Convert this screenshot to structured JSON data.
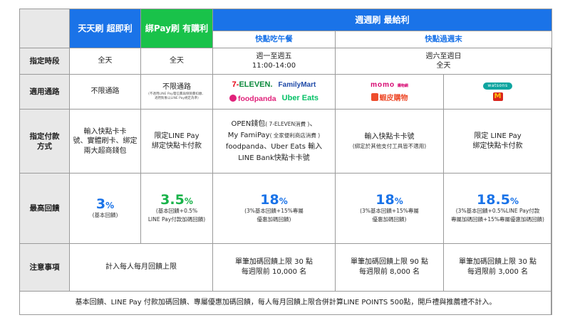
{
  "header": {
    "col1": "天天刷 超即利",
    "col2": "綁Pay刷 有購利",
    "weekly": "週週刷 最給利",
    "weekday_sub": "快點吃午餐",
    "weekend_sub": "快點過週末"
  },
  "rows": {
    "time": {
      "label": "指定時段",
      "col1": "全天",
      "col2": "全天",
      "weekday_line1": "週一至週五",
      "weekday_line2": "11:00-14:00",
      "weekend_line1": "週六至週日",
      "weekend_line2": "全天"
    },
    "channel": {
      "label": "適用通路",
      "col1": "不限通路",
      "col2": "不限通路",
      "col2_note1": "(不適用LINE Pay電信費與保險費扣繳、",
      "col2_note2": "適用對象以LINE Pay規定為準)",
      "logos": {
        "seven_prefix": "7-",
        "seven_suffix": "ELEVEN.",
        "familymart": "FamilyMart",
        "foodpanda": "foodpanda",
        "ubereats": "Uber Eats",
        "momo": "momo",
        "momo_sub": "購物網",
        "shopee": "蝦皮購物",
        "watsons": "watsons",
        "mcd": "M"
      }
    },
    "payment": {
      "label_line1": "指定付款",
      "label_line2": "方式",
      "col1_line1": "輸入快點卡卡",
      "col1_line2": "號、實體刷卡、綁定",
      "col1_line3": "兩大超商錢包",
      "col2_line1": "限定LINE Pay",
      "col2_line2": "綁定快點卡付款",
      "weekday_line1": "OPEN錢包",
      "weekday_line1_note": "( 7-ELEVEN消費 )",
      "weekday_line1_end": "、",
      "weekday_line2": "My FamiPay",
      "weekday_line2_note": "( 全家便利商店消費 )",
      "weekday_line3": "foodpanda、Uber Eats 輸入",
      "weekday_line4": "LINE Bank快點卡卡號",
      "weekend_line1": "輸入快點卡卡號",
      "weekend_note": "(綁定於其他支付工具皆不適用)",
      "weekend2_line1": "限定 LINE Pay",
      "weekend2_line2": "綁定快點卡付款"
    },
    "reward": {
      "label": "最高回饋",
      "col1_value": "3",
      "col1_note": "(基本回饋)",
      "col2_value": "3.5",
      "col2_note1": "(基本回饋+0.5%",
      "col2_note2": "LINE Pay付款加碼回饋)",
      "weekday_value": "18",
      "weekday_note1": "(3%基本回饋+15%專屬",
      "weekday_note2": "優惠加碼回饋)",
      "weekend_value": "18",
      "weekend_note1": "(3%基本回饋+15%專屬",
      "weekend_note2": "優惠加碼回饋)",
      "weekend2_value": "18.5",
      "weekend2_note1": "(3%基本回饋+0.5%LINE Pay付款",
      "weekend2_note2": "專屬加碼回饋+15%專屬優惠加碼回饋)",
      "pct": "%"
    },
    "notes": {
      "label": "注意事項",
      "col12": "計入每人每月回饋上限",
      "weekday_line1": "單筆加碼回饋上限 30 點",
      "weekday_line2": "每週限前 10,000 名",
      "weekend_line1": "單筆加碼回饋上限 90 點",
      "weekend_line2": "每週限前 8,000 名",
      "weekend2_line1": "單筆加碼回饋上限 30 點",
      "weekend2_line2": "每週限前 3,000 名"
    },
    "footer": "基本回饋、LINE Pay 付款加碼回饋、專屬優惠加碼回饋，每人每月回饋上限合併計算LINE POINTS 500點，開戶禮與推薦禮不計入。"
  },
  "colors": {
    "blue": "#1a73e8",
    "green": "#19c24a",
    "label_bg": "#e8e8e8"
  }
}
